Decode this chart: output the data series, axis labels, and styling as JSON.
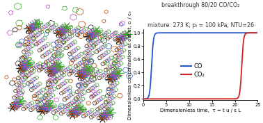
{
  "title_line1": "breakthrough 80/20 CO/CO₂",
  "title_line2": "mixture: 273 K; pᵢ = 100 kPa; NTU=26",
  "xlabel": "Dimensionless time,  τ = t u / ε L",
  "ylabel": "Dimensionless concentration at outlet, cᵢ / c₀",
  "xlim": [
    0,
    25
  ],
  "ylim": [
    -0.02,
    1.05
  ],
  "co_color": "#2255cc",
  "co2_color": "#cc2222",
  "legend_co": "CO",
  "legend_co2": "CO₂",
  "co_breakthrough": 1.8,
  "co2_breakthrough": 21.5,
  "co_steepness": 5.0,
  "co2_steepness": 5.0,
  "title_fontsize": 5.8,
  "axis_fontsize": 5.0,
  "tick_fontsize": 4.8,
  "legend_fontsize": 6.0,
  "colors_net": [
    "#222222",
    "#bb4400",
    "#3366cc",
    "#bb44bb",
    "#33aa22"
  ],
  "net_lw": 0.5
}
